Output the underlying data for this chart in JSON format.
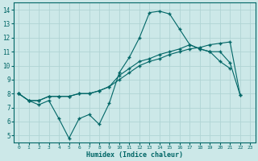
{
  "title": "",
  "xlabel": "Humidex (Indice chaleur)",
  "ylabel": "",
  "background_color": "#cce8e8",
  "grid_color": "#b0d4d4",
  "line_color": "#006666",
  "xlim": [
    -0.5,
    23.5
  ],
  "ylim": [
    4.5,
    14.5
  ],
  "xticks": [
    0,
    1,
    2,
    3,
    4,
    5,
    6,
    7,
    8,
    9,
    10,
    11,
    12,
    13,
    14,
    15,
    16,
    17,
    18,
    19,
    20,
    21,
    22,
    23
  ],
  "yticks": [
    5,
    6,
    7,
    8,
    9,
    10,
    11,
    12,
    13,
    14
  ],
  "line1_x": [
    0,
    1,
    2,
    3,
    4,
    5,
    6,
    7,
    8,
    9,
    10,
    11,
    12,
    13,
    14,
    15,
    16,
    17,
    18,
    19,
    20,
    21
  ],
  "line1_y": [
    8.0,
    7.5,
    7.2,
    7.5,
    6.2,
    4.8,
    6.2,
    6.5,
    5.8,
    7.3,
    9.5,
    10.6,
    12.0,
    13.8,
    13.9,
    13.7,
    12.6,
    11.5,
    11.2,
    11.0,
    10.3,
    9.8
  ],
  "line2_x": [
    0,
    1,
    2,
    3,
    4,
    5,
    6,
    7,
    8,
    9,
    10,
    11,
    12,
    13,
    14,
    15,
    16,
    17,
    18,
    19,
    20,
    21,
    22
  ],
  "line2_y": [
    8.0,
    7.5,
    7.5,
    7.8,
    7.8,
    7.8,
    8.0,
    8.0,
    8.2,
    8.5,
    9.0,
    9.5,
    10.0,
    10.3,
    10.5,
    10.8,
    11.0,
    11.2,
    11.3,
    11.5,
    11.6,
    11.7,
    7.9
  ],
  "line3_x": [
    0,
    1,
    2,
    3,
    4,
    5,
    6,
    7,
    8,
    9,
    10,
    11,
    12,
    13,
    14,
    15,
    16,
    17,
    18,
    19,
    20,
    21,
    22
  ],
  "line3_y": [
    8.0,
    7.5,
    7.5,
    7.8,
    7.8,
    7.8,
    8.0,
    8.0,
    8.2,
    8.5,
    9.3,
    9.8,
    10.3,
    10.5,
    10.8,
    11.0,
    11.2,
    11.5,
    11.2,
    11.0,
    11.0,
    10.2,
    7.9
  ]
}
